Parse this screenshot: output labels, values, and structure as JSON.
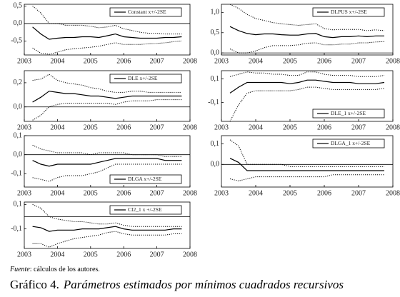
{
  "chart_data": [
    {
      "type": "line",
      "legend": "upper right",
      "zero_line": true,
      "x": [
        2003.25,
        2003.5,
        2003.75,
        2004,
        2004.25,
        2004.5,
        2004.75,
        2005,
        2005.25,
        2005.5,
        2005.75,
        2006,
        2006.25,
        2006.5,
        2006.75,
        2007,
        2007.25,
        2007.5,
        2007.75
      ],
      "xlim": [
        2003,
        2008
      ],
      "xticks": [
        2003,
        2004,
        2005,
        2006,
        2007,
        2008
      ],
      "ylim": [
        -0.9,
        0.55
      ],
      "yticks": [
        {
          "value": 0.5,
          "label": "0,5"
        },
        {
          "value": 0,
          "label": "0,0"
        },
        {
          "value": -0.5,
          "label": "-0,5"
        }
      ],
      "series": [
        {
          "name": "Constant  x+/-2SE",
          "color": "#000000",
          "values": [
            -0.1,
            -0.3,
            -0.45,
            -0.42,
            -0.4,
            -0.4,
            -0.38,
            -0.38,
            -0.4,
            -0.35,
            -0.3,
            -0.38,
            -0.4,
            -0.42,
            -0.42,
            -0.42,
            -0.4,
            -0.4,
            -0.38
          ],
          "upper": [
            0.5,
            0.3,
            0.0,
            0.0,
            -0.05,
            -0.05,
            -0.05,
            -0.08,
            -0.12,
            -0.1,
            -0.05,
            -0.15,
            -0.2,
            -0.25,
            -0.28,
            -0.28,
            -0.3,
            -0.3,
            -0.3
          ],
          "lower": [
            -0.7,
            -0.85,
            -0.88,
            -0.82,
            -0.75,
            -0.72,
            -0.7,
            -0.68,
            -0.65,
            -0.6,
            -0.55,
            -0.6,
            -0.6,
            -0.6,
            -0.58,
            -0.57,
            -0.55,
            -0.52,
            -0.5
          ]
        }
      ]
    },
    {
      "type": "line",
      "legend": "upper right",
      "zero_line": true,
      "x": [
        2003.25,
        2003.5,
        2003.75,
        2004,
        2004.25,
        2004.5,
        2004.75,
        2005,
        2005.25,
        2005.5,
        2005.75,
        2006,
        2006.25,
        2006.5,
        2006.75,
        2007,
        2007.25,
        2007.5,
        2007.75
      ],
      "xlim": [
        2003,
        2008
      ],
      "xticks": [
        2003,
        2004,
        2005,
        2006,
        2007,
        2008
      ],
      "ylim": [
        -0.05,
        1.2
      ],
      "yticks": [
        {
          "value": 1,
          "label": "1,0"
        },
        {
          "value": 0.5,
          "label": "0,5"
        },
        {
          "value": 0,
          "label": "0,0"
        }
      ],
      "series": [
        {
          "name": "DLPUS x+/-2SE",
          "color": "#000000",
          "values": [
            0.65,
            0.55,
            0.48,
            0.45,
            0.47,
            0.47,
            0.45,
            0.44,
            0.44,
            0.47,
            0.48,
            0.4,
            0.38,
            0.4,
            0.4,
            0.42,
            0.4,
            0.42,
            0.42
          ],
          "upper": [
            1.2,
            1.1,
            0.95,
            0.85,
            0.8,
            0.75,
            0.72,
            0.7,
            0.68,
            0.7,
            0.72,
            0.6,
            0.57,
            0.58,
            0.58,
            0.58,
            0.55,
            0.57,
            0.55
          ],
          "lower": [
            0.1,
            0.0,
            0.0,
            0.05,
            0.13,
            0.18,
            0.18,
            0.18,
            0.2,
            0.24,
            0.25,
            0.2,
            0.2,
            0.22,
            0.22,
            0.25,
            0.25,
            0.27,
            0.28
          ]
        }
      ]
    },
    {
      "type": "line",
      "legend": "upper right",
      "zero_line": true,
      "x": [
        2003.25,
        2003.5,
        2003.75,
        2004,
        2004.25,
        2004.5,
        2004.75,
        2005,
        2005.25,
        2005.5,
        2005.75,
        2006,
        2006.25,
        2006.5,
        2006.75,
        2007,
        2007.25,
        2007.5,
        2007.75
      ],
      "xlim": [
        2003,
        2008
      ],
      "xticks": [
        2003,
        2004,
        2005,
        2006,
        2007,
        2008
      ],
      "ylim": [
        -0.12,
        0.3
      ],
      "yticks": [
        {
          "value": 0.2,
          "label": "0,2"
        },
        {
          "value": 0,
          "label": "0,0"
        }
      ],
      "series": [
        {
          "name": "DLE x+/-2SE",
          "color": "#000000",
          "values": [
            0.04,
            0.08,
            0.13,
            0.12,
            0.11,
            0.11,
            0.1,
            0.09,
            0.09,
            0.08,
            0.07,
            0.08,
            0.09,
            0.09,
            0.09,
            0.09,
            0.09,
            0.09,
            0.09
          ],
          "upper": [
            0.22,
            0.23,
            0.27,
            0.22,
            0.2,
            0.19,
            0.18,
            0.16,
            0.15,
            0.13,
            0.12,
            0.12,
            0.13,
            0.13,
            0.12,
            0.12,
            0.12,
            0.12,
            0.12
          ],
          "lower": [
            -0.11,
            -0.07,
            0.0,
            0.02,
            0.03,
            0.03,
            0.03,
            0.03,
            0.03,
            0.03,
            0.02,
            0.04,
            0.05,
            0.05,
            0.05,
            0.06,
            0.06,
            0.06,
            0.06
          ]
        }
      ]
    },
    {
      "type": "line",
      "legend": "lower right",
      "zero_line": false,
      "x": [
        2003.25,
        2003.5,
        2003.75,
        2004,
        2004.25,
        2004.5,
        2004.75,
        2005,
        2005.25,
        2005.5,
        2005.75,
        2006,
        2006.25,
        2006.5,
        2006.75,
        2007,
        2007.25,
        2007.5,
        2007.75
      ],
      "xlim": [
        2003,
        2008
      ],
      "xticks": [
        2003,
        2004,
        2005,
        2006,
        2007,
        2008
      ],
      "ylim": [
        -0.26,
        0.17
      ],
      "yticks": [
        {
          "value": 0.1,
          "label": "0,1"
        },
        {
          "value": -0.1,
          "label": "-0,1"
        }
      ],
      "series": [
        {
          "name": "DLE_1 x+/-2SE",
          "color": "#000000",
          "values": [
            -0.02,
            0.03,
            0.07,
            0.07,
            0.07,
            0.07,
            0.07,
            0.06,
            0.07,
            0.09,
            0.09,
            0.08,
            0.07,
            0.07,
            0.07,
            0.06,
            0.06,
            0.06,
            0.07
          ],
          "upper": [
            0.12,
            0.14,
            0.16,
            0.15,
            0.15,
            0.14,
            0.14,
            0.13,
            0.13,
            0.16,
            0.16,
            0.14,
            0.13,
            0.13,
            0.13,
            0.12,
            0.12,
            0.12,
            0.13
          ],
          "lower": [
            -0.26,
            -0.12,
            -0.02,
            0.0,
            0.0,
            0.0,
            0.0,
            0.0,
            0.01,
            0.03,
            0.03,
            0.02,
            0.01,
            0.01,
            0.01,
            0.01,
            0.01,
            0.01,
            0.02
          ]
        }
      ]
    },
    {
      "type": "line",
      "legend": "lower right",
      "zero_line": true,
      "x": [
        2003.25,
        2003.5,
        2003.75,
        2004,
        2004.25,
        2004.5,
        2004.75,
        2005,
        2005.25,
        2005.5,
        2005.75,
        2006,
        2006.25,
        2006.5,
        2006.75,
        2007,
        2007.25,
        2007.5,
        2007.75
      ],
      "xlim": [
        2003,
        2008
      ],
      "xticks": [
        2003,
        2004,
        2005,
        2006,
        2007,
        2008
      ],
      "ylim": [
        -0.17,
        0.1
      ],
      "yticks": [
        {
          "value": 0.1,
          "label": "0,1"
        },
        {
          "value": 0,
          "label": "0,0"
        },
        {
          "value": -0.1,
          "label": "-0,1"
        }
      ],
      "series": [
        {
          "name": "DLGA x+/-2SE",
          "color": "#000000",
          "values": [
            -0.03,
            -0.05,
            -0.06,
            -0.05,
            -0.05,
            -0.05,
            -0.05,
            -0.05,
            -0.04,
            -0.03,
            -0.02,
            -0.02,
            -0.02,
            -0.02,
            -0.02,
            -0.02,
            -0.03,
            -0.03,
            -0.03
          ],
          "upper": [
            0.05,
            0.03,
            0.02,
            0.01,
            0.01,
            0.01,
            0.01,
            0.0,
            0.01,
            0.01,
            0.01,
            0.01,
            0.0,
            0.0,
            0.0,
            0.0,
            -0.01,
            -0.01,
            -0.01
          ],
          "lower": [
            -0.12,
            -0.13,
            -0.14,
            -0.12,
            -0.11,
            -0.11,
            -0.11,
            -0.1,
            -0.09,
            -0.07,
            -0.05,
            -0.05,
            -0.05,
            -0.05,
            -0.05,
            -0.05,
            -0.05,
            -0.05,
            -0.05
          ]
        }
      ]
    },
    {
      "type": "line",
      "legend": "upper right",
      "zero_line": true,
      "x": [
        2003.25,
        2003.5,
        2003.75,
        2004,
        2004.25,
        2004.5,
        2004.75,
        2005,
        2005.25,
        2005.5,
        2005.75,
        2006,
        2006.25,
        2006.5,
        2006.75,
        2007,
        2007.25,
        2007.5,
        2007.75
      ],
      "xlim": [
        2003,
        2008
      ],
      "xticks": [
        2003,
        2004,
        2005,
        2006,
        2007,
        2008
      ],
      "ylim": [
        -0.11,
        0.14
      ],
      "yticks": [
        {
          "value": 0.1,
          "label": "0,1"
        },
        {
          "value": 0,
          "label": "0,0"
        }
      ],
      "series": [
        {
          "name": "DLGA_1 x+/-2SE",
          "color": "#000000",
          "values": [
            0.03,
            0.01,
            -0.03,
            -0.03,
            -0.03,
            -0.03,
            -0.03,
            -0.03,
            -0.03,
            -0.03,
            -0.03,
            -0.03,
            -0.03,
            -0.03,
            -0.03,
            -0.03,
            -0.03,
            -0.03,
            -0.03
          ],
          "upper": [
            0.12,
            0.09,
            0.0,
            0.0,
            0.0,
            0.0,
            0.0,
            -0.01,
            -0.01,
            -0.01,
            -0.01,
            -0.01,
            -0.01,
            -0.01,
            -0.01,
            -0.01,
            -0.01,
            -0.01,
            -0.01
          ],
          "lower": [
            -0.07,
            -0.08,
            -0.07,
            -0.06,
            -0.06,
            -0.06,
            -0.06,
            -0.06,
            -0.06,
            -0.06,
            -0.06,
            -0.06,
            -0.05,
            -0.05,
            -0.05,
            -0.05,
            -0.05,
            -0.05,
            -0.05
          ]
        }
      ]
    },
    {
      "type": "line",
      "legend": "upper right",
      "zero_line": true,
      "x": [
        2003.25,
        2003.5,
        2003.75,
        2004,
        2004.25,
        2004.5,
        2004.75,
        2005,
        2005.25,
        2005.5,
        2005.75,
        2006,
        2006.25,
        2006.5,
        2006.75,
        2007,
        2007.25,
        2007.5,
        2007.75
      ],
      "xlim": [
        2003,
        2008
      ],
      "xticks": [
        2003,
        2004,
        2005,
        2006,
        2007,
        2008
      ],
      "ylim": [
        -0.26,
        0.12
      ],
      "yticks": [
        {
          "value": 0.1,
          "label": "0,1"
        },
        {
          "value": -0.1,
          "label": "-0,1"
        }
      ],
      "series": [
        {
          "name": "CI2_1 x +/-2SE",
          "color": "#000000",
          "values": [
            -0.08,
            -0.09,
            -0.12,
            -0.11,
            -0.11,
            -0.11,
            -0.1,
            -0.1,
            -0.1,
            -0.09,
            -0.08,
            -0.1,
            -0.11,
            -0.11,
            -0.11,
            -0.11,
            -0.11,
            -0.1,
            -0.1
          ],
          "upper": [
            0.1,
            0.07,
            0.0,
            -0.02,
            -0.03,
            -0.04,
            -0.04,
            -0.05,
            -0.06,
            -0.06,
            -0.05,
            -0.07,
            -0.08,
            -0.08,
            -0.08,
            -0.08,
            -0.08,
            -0.08,
            -0.08
          ],
          "lower": [
            -0.22,
            -0.22,
            -0.25,
            -0.22,
            -0.2,
            -0.18,
            -0.17,
            -0.16,
            -0.15,
            -0.13,
            -0.12,
            -0.14,
            -0.15,
            -0.15,
            -0.15,
            -0.15,
            -0.15,
            -0.14,
            -0.14
          ]
        }
      ]
    }
  ],
  "source": {
    "label": "Fuente",
    "text": ": cálculos de los autores."
  },
  "caption": {
    "number": "Gráfico 4.",
    "text": "Parámetros estimados por mínimos cuadrados recursivos"
  }
}
